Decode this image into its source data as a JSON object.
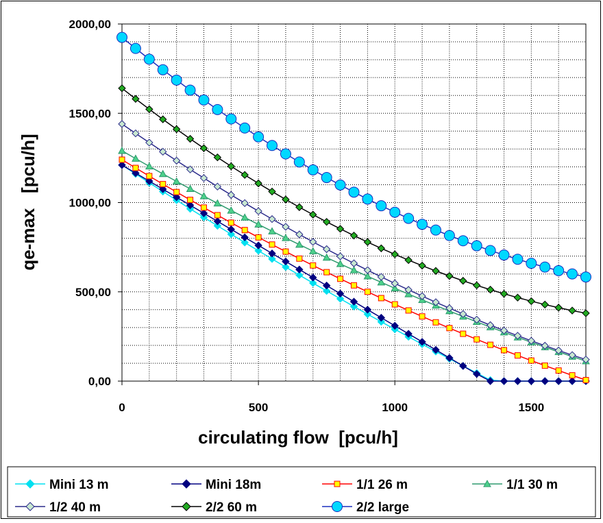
{
  "chart_data": {
    "type": "line",
    "xlabel": "circulating flow  [pcu/h]",
    "ylabel": "qe-max   [pcu/h]",
    "xlim": [
      0,
      1700
    ],
    "ylim": [
      0,
      2000
    ],
    "x_ticks": [
      "0",
      "500",
      "1000",
      "1500"
    ],
    "y_ticks": [
      "0,00",
      "500,00",
      "1000,00",
      "1500,00",
      "2000,00"
    ],
    "x_step": 50,
    "grid": true,
    "legend_placement": "bottom",
    "series": [
      {
        "name": "Mini 13 m",
        "color": "#00e0f0",
        "marker": "diamond",
        "start": 1210,
        "slope": -1.0,
        "curve": 8e-05
      },
      {
        "name": "Mini 18m",
        "color": "#000080",
        "marker": "diamond",
        "start": 1210,
        "slope": -0.9,
        "curve": 0.0
      },
      {
        "name": "1/1 26 m",
        "color": "#ff0000",
        "marker": "square",
        "fill": "#ffff00",
        "start": 1240,
        "slope": -0.93,
        "curve": 0.00012
      },
      {
        "name": "1/1 30 m",
        "color": "#2e9a6e",
        "marker": "triangle",
        "fill": "#4cd08a",
        "start": 1290,
        "slope": -0.88,
        "curve": 0.00011
      },
      {
        "name": "1/2 40 m",
        "color": "#2a2a8a",
        "marker": "diamond",
        "fill": "#c8e8d0",
        "start": 1440,
        "slope": -1.06,
        "curve": 0.000167
      },
      {
        "name": "2/2 60 m",
        "color": "#000000",
        "marker": "diamond",
        "fill": "#22aa22",
        "start": 1640,
        "slope": -1.2,
        "curve": 0.00027
      },
      {
        "name": "2/2 large",
        "color": "#1a2fbf",
        "marker": "circle",
        "fill": "#00d8ff",
        "start": 1925,
        "slope": -1.25,
        "curve": 0.000271
      }
    ]
  }
}
